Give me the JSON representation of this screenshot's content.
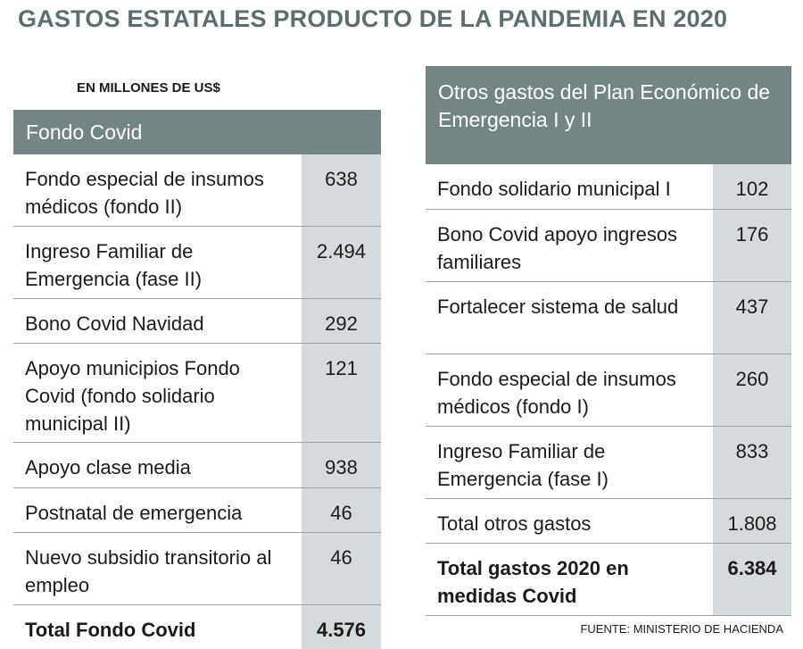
{
  "title": "GASTOS ESTATALES PRODUCTO DE LA PANDEMIA EN 2020",
  "subtitle": "EN MILLONES DE US$",
  "source": "FUENTE: MINISTERIO DE HACIENDA",
  "left_table": {
    "header": "Fondo Covid",
    "rows": [
      {
        "label": "Fondo especial de insumos médicos (fondo II)",
        "value": "638"
      },
      {
        "label": "Ingreso Familiar de Emergencia (fase II)",
        "value": "2.494"
      },
      {
        "label": "Bono Covid Navidad",
        "value": "292"
      },
      {
        "label": "Apoyo municipios Fondo Covid (fondo solidario municipal II)",
        "value": "121"
      },
      {
        "label": "Apoyo clase media",
        "value": "938"
      },
      {
        "label": "Postnatal de emergencia",
        "value": "46"
      },
      {
        "label": "Nuevo subsidio transitorio al empleo",
        "value": "46"
      }
    ],
    "total": {
      "label": "Total Fondo Covid",
      "value": "4.576"
    }
  },
  "right_table": {
    "header": "Otros gastos del Plan Económico de Emergencia I y II",
    "rows": [
      {
        "label": "Fondo solidario municipal I",
        "value": "102"
      },
      {
        "label": "Bono Covid apoyo ingresos familiares",
        "value": "176"
      },
      {
        "label": "Fortalecer sistema de salud",
        "value": "437"
      },
      {
        "label": "Fondo especial de insumos médicos (fondo I)",
        "value": "260"
      },
      {
        "label": "Ingreso Familiar de Emergencia (fase I)",
        "value": "833"
      },
      {
        "label": "Total otros gastos",
        "value": "1.808"
      }
    ],
    "total": {
      "label": "Total gastos 2020 en medidas Covid",
      "value": "6.384"
    }
  }
}
